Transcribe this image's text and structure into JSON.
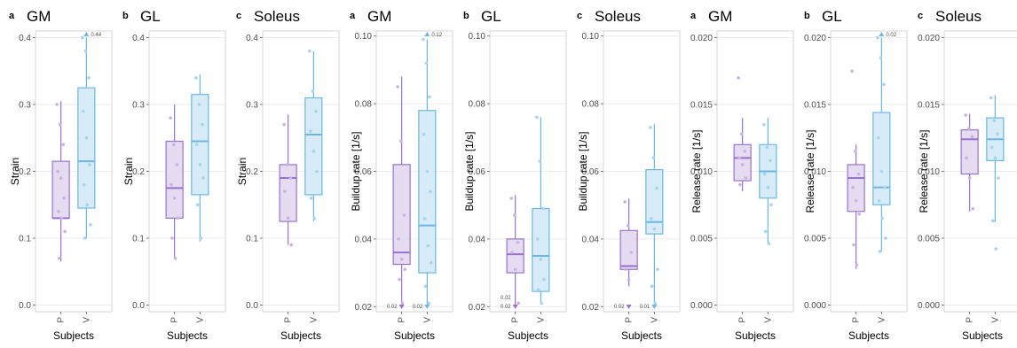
{
  "colors": {
    "P": {
      "line": "#9a72cc",
      "fill": "#e6dcf2",
      "point": "#c7b4e0"
    },
    "V": {
      "line": "#6cb6e4",
      "fill": "#d8ecf8",
      "point": "#a7d3ef"
    }
  },
  "chart_data": [
    {
      "type": "box",
      "letter": "a",
      "title": "GM",
      "ylabel": "Strain",
      "xlabel": "Subjects",
      "ylim": [
        -0.01,
        0.41
      ],
      "yticks": [
        "0.0",
        "0.1",
        "0.2",
        "0.3",
        "0.4"
      ],
      "ytick_values": [
        0,
        0.1,
        0.2,
        0.3,
        0.4
      ],
      "categories": [
        "P",
        "V"
      ],
      "boxes": [
        {
          "category": "P",
          "min": 0.065,
          "q1": 0.13,
          "median": 0.13,
          "q3": 0.215,
          "max": 0.305,
          "points": [
            0.3,
            0.27,
            0.24,
            0.2,
            0.19,
            0.16,
            0.14,
            0.13,
            0.11,
            0.07
          ]
        },
        {
          "category": "V",
          "min": 0.1,
          "q1": 0.145,
          "median": 0.215,
          "q3": 0.325,
          "max": 0.4,
          "points": [
            0.4,
            0.38,
            0.34,
            0.29,
            0.25,
            0.21,
            0.18,
            0.15,
            0.12,
            0.1
          ],
          "outlier_label": "0.44"
        }
      ]
    },
    {
      "type": "box",
      "letter": "b",
      "title": "GL",
      "ylabel": "Strain",
      "xlabel": "Subjects",
      "ylim": [
        -0.01,
        0.41
      ],
      "yticks": [
        "0.0",
        "0.1",
        "0.2",
        "0.3",
        "0.4"
      ],
      "ytick_values": [
        0,
        0.1,
        0.2,
        0.3,
        0.4
      ],
      "categories": [
        "P",
        "V"
      ],
      "boxes": [
        {
          "category": "P",
          "min": 0.07,
          "q1": 0.13,
          "median": 0.175,
          "q3": 0.245,
          "max": 0.3,
          "points": [
            0.28,
            0.24,
            0.21,
            0.18,
            0.16,
            0.13,
            0.1,
            0.07
          ]
        },
        {
          "category": "V",
          "min": 0.095,
          "q1": 0.165,
          "median": 0.245,
          "q3": 0.315,
          "max": 0.345,
          "points": [
            0.34,
            0.3,
            0.27,
            0.24,
            0.21,
            0.19,
            0.15,
            0.1
          ]
        }
      ]
    },
    {
      "type": "box",
      "letter": "c",
      "title": "Soleus",
      "ylabel": "Strain",
      "xlabel": "Subjects",
      "ylim": [
        -0.01,
        0.41
      ],
      "yticks": [
        "0.0",
        "0.1",
        "0.2",
        "0.3",
        "0.4"
      ],
      "ytick_values": [
        0,
        0.1,
        0.2,
        0.3,
        0.4
      ],
      "categories": [
        "P",
        "V"
      ],
      "boxes": [
        {
          "category": "P",
          "min": 0.09,
          "q1": 0.125,
          "median": 0.19,
          "q3": 0.21,
          "max": 0.285,
          "points": [
            0.27,
            0.21,
            0.19,
            0.17,
            0.13,
            0.09
          ]
        },
        {
          "category": "V",
          "min": 0.125,
          "q1": 0.165,
          "median": 0.255,
          "q3": 0.31,
          "max": 0.38,
          "points": [
            0.38,
            0.32,
            0.29,
            0.26,
            0.23,
            0.2,
            0.16,
            0.13
          ]
        }
      ]
    },
    {
      "type": "box",
      "letter": "a",
      "title": "GM",
      "ylabel": "Buildup rate [1/s]",
      "xlabel": "Subjects",
      "ylim": [
        0.0185,
        0.1015
      ],
      "yticks": [
        "0.02",
        "0.04",
        "0.06",
        "0.08",
        "0.10"
      ],
      "ytick_values": [
        0.02,
        0.04,
        0.06,
        0.08,
        0.1
      ],
      "categories": [
        "P",
        "V"
      ],
      "boxes": [
        {
          "category": "P",
          "min": 0.0205,
          "q1": 0.0325,
          "median": 0.036,
          "q3": 0.062,
          "max": 0.088,
          "points": [
            0.085,
            0.069,
            0.047,
            0.04,
            0.034,
            0.031,
            0.028,
            0.021
          ],
          "low_label": "0.02"
        },
        {
          "category": "V",
          "min": 0.0205,
          "q1": 0.03,
          "median": 0.044,
          "q3": 0.078,
          "max": 0.099,
          "points": [
            0.099,
            0.092,
            0.082,
            0.071,
            0.06,
            0.054,
            0.046,
            0.038,
            0.033,
            0.026,
            0.021
          ],
          "outlier_label": "0.12",
          "low_label": "0.02"
        }
      ]
    },
    {
      "type": "box",
      "letter": "b",
      "title": "GL",
      "ylabel": "Buildup rate [1/s]",
      "xlabel": "Subjects",
      "ylim": [
        0.0185,
        0.1015
      ],
      "yticks": [
        "0.02",
        "0.04",
        "0.06",
        "0.08",
        "0.10"
      ],
      "ytick_values": [
        0.02,
        0.04,
        0.06,
        0.08,
        0.1
      ],
      "categories": [
        "P",
        "V"
      ],
      "boxes": [
        {
          "category": "P",
          "min": 0.0205,
          "q1": 0.03,
          "median": 0.0355,
          "q3": 0.04,
          "max": 0.053,
          "points": [
            0.052,
            0.047,
            0.039,
            0.036,
            0.031,
            0.021
          ],
          "low_label": "0.02",
          "extra_label": "0.02"
        },
        {
          "category": "V",
          "min": 0.021,
          "q1": 0.0245,
          "median": 0.035,
          "q3": 0.049,
          "max": 0.076,
          "points": [
            0.076,
            0.063,
            0.049,
            0.04,
            0.034,
            0.028,
            0.025,
            0.021
          ]
        }
      ]
    },
    {
      "type": "box",
      "letter": "c",
      "title": "Soleus",
      "ylabel": "Buildup rate [1/s]",
      "xlabel": "Subjects",
      "ylim": [
        0.0185,
        0.1015
      ],
      "yticks": [
        "0.02",
        "0.04",
        "0.06",
        "0.08",
        "0.10"
      ],
      "ytick_values": [
        0.02,
        0.04,
        0.06,
        0.08,
        0.1
      ],
      "categories": [
        "P",
        "V"
      ],
      "boxes": [
        {
          "category": "P",
          "min": 0.026,
          "q1": 0.031,
          "median": 0.032,
          "q3": 0.0425,
          "max": 0.052,
          "points": [
            0.051,
            0.044,
            0.036,
            0.031,
            0.028
          ],
          "low_label": "0.02"
        },
        {
          "category": "V",
          "min": 0.021,
          "q1": 0.0415,
          "median": 0.045,
          "q3": 0.0605,
          "max": 0.074,
          "points": [
            0.073,
            0.064,
            0.055,
            0.046,
            0.043,
            0.031,
            0.026,
            0.021
          ],
          "low_label": "0.01"
        }
      ]
    },
    {
      "type": "box",
      "letter": "a",
      "title": "GM",
      "ylabel": "Release rate [1/s]",
      "xlabel": "Subjects",
      "ylim": [
        -0.0005,
        0.0205
      ],
      "yticks": [
        "0.000",
        "0.005",
        "0.010",
        "0.015",
        "0.020"
      ],
      "ytick_values": [
        0,
        0.005,
        0.01,
        0.015,
        0.02
      ],
      "categories": [
        "P",
        "V"
      ],
      "boxes": [
        {
          "category": "P",
          "min": 0.0085,
          "q1": 0.0093,
          "median": 0.011,
          "q3": 0.012,
          "max": 0.014,
          "points": [
            0.017,
            0.0128,
            0.0115,
            0.011,
            0.0105,
            0.0095,
            0.009
          ]
        },
        {
          "category": "V",
          "min": 0.0045,
          "q1": 0.008,
          "median": 0.01,
          "q3": 0.012,
          "max": 0.014,
          "points": [
            0.0135,
            0.0118,
            0.0108,
            0.0098,
            0.0088,
            0.0075,
            0.0055,
            0.0046
          ]
        }
      ]
    },
    {
      "type": "box",
      "letter": "b",
      "title": "GL",
      "ylabel": "Release rate [1/s]",
      "xlabel": "Subjects",
      "ylim": [
        -0.0005,
        0.0205
      ],
      "yticks": [
        "0.000",
        "0.005",
        "0.010",
        "0.015",
        "0.020"
      ],
      "ytick_values": [
        0,
        0.005,
        0.01,
        0.015,
        0.02
      ],
      "categories": [
        "P",
        "V"
      ],
      "boxes": [
        {
          "category": "P",
          "min": 0.0027,
          "q1": 0.007,
          "median": 0.0095,
          "q3": 0.0105,
          "max": 0.012,
          "points": [
            0.0175,
            0.0115,
            0.0098,
            0.0088,
            0.0078,
            0.0068,
            0.0045,
            0.003
          ]
        },
        {
          "category": "V",
          "min": 0.004,
          "q1": 0.0075,
          "median": 0.0088,
          "q3": 0.0144,
          "max": 0.02,
          "points": [
            0.02,
            0.0185,
            0.0165,
            0.0125,
            0.01,
            0.0088,
            0.0078,
            0.0065,
            0.005,
            0.004
          ],
          "outlier_label": "0.02"
        }
      ]
    },
    {
      "type": "box",
      "letter": "c",
      "title": "Soleus",
      "ylabel": "Release rate [1/s]",
      "xlabel": "Subjects",
      "ylim": [
        -0.0005,
        0.0205
      ],
      "yticks": [
        "0.000",
        "0.005",
        "0.010",
        "0.015",
        "0.020"
      ],
      "ytick_values": [
        0,
        0.005,
        0.01,
        0.015,
        0.02
      ],
      "categories": [
        "P",
        "V"
      ],
      "boxes": [
        {
          "category": "P",
          "min": 0.007,
          "q1": 0.0098,
          "median": 0.0124,
          "q3": 0.0131,
          "max": 0.0143,
          "points": [
            0.0142,
            0.0132,
            0.0126,
            0.011,
            0.0095,
            0.0072
          ]
        },
        {
          "category": "V",
          "min": 0.0062,
          "q1": 0.0108,
          "median": 0.0124,
          "q3": 0.014,
          "max": 0.0157,
          "points": [
            0.0155,
            0.0138,
            0.0128,
            0.0118,
            0.011,
            0.0095,
            0.0063,
            0.0042
          ]
        }
      ]
    }
  ]
}
